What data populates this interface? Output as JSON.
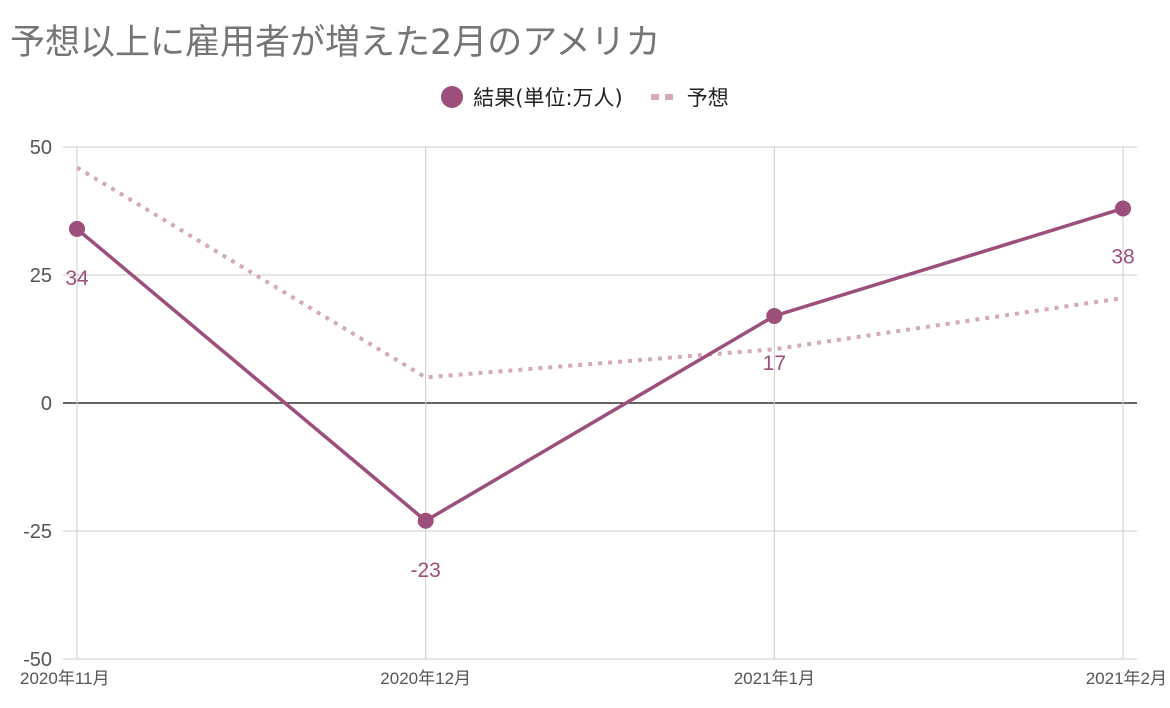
{
  "title": "予想以上に雇用者が増えた2月のアメリカ",
  "legend": {
    "result_label": "結果(単位:万人)",
    "forecast_label": "予想"
  },
  "colors": {
    "result": "#9b4f7a",
    "forecast": "#d5a8bd",
    "grid": "#cccccc",
    "zero_line": "#333333",
    "axis_text": "#555555",
    "title": "#757575"
  },
  "chart_data": {
    "type": "line",
    "title": "予想以上に雇用者が増えた2月のアメリカ",
    "categories": [
      "2020年11月",
      "2020年12月",
      "2021年1月",
      "2021年2月"
    ],
    "series": [
      {
        "name": "結果(単位:万人)",
        "values": [
          34,
          -23,
          17,
          38
        ],
        "data_labels": [
          "34",
          "-23",
          "17",
          "38"
        ],
        "style": "solid",
        "markers": true
      },
      {
        "name": "予想",
        "values": [
          46,
          5,
          10.5,
          20.5
        ],
        "style": "dotted",
        "markers": false
      }
    ],
    "ylim": [
      -50,
      50
    ],
    "yticks": [
      50,
      25,
      0,
      -25,
      -50
    ],
    "ytick_labels": [
      "50",
      "25",
      "0",
      "-25",
      "-50"
    ],
    "grid": true,
    "legend_position": "top-center"
  }
}
